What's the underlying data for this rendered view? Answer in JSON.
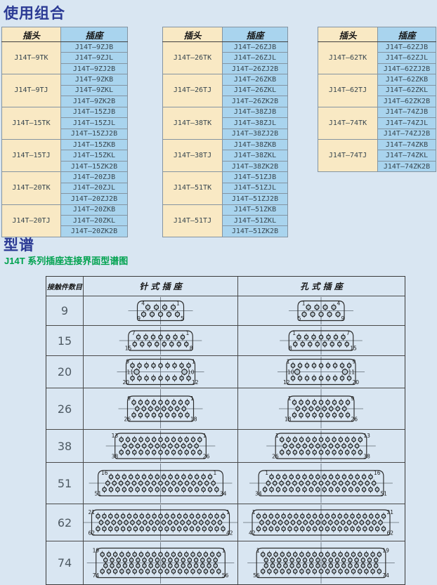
{
  "section_usage": {
    "title": "使用组合",
    "col_headers": {
      "plug": "插头",
      "socket": "插座"
    },
    "tables": [
      {
        "groups": [
          {
            "plug": "J14T—9TK",
            "sockets": [
              "J14T—9ZJB",
              "J14T—9ZJL",
              "J14T—9ZJ2B"
            ]
          },
          {
            "plug": "J14T—9TJ",
            "sockets": [
              "J14T—9ZKB",
              "J14T—9ZKL",
              "J14T—9ZK2B"
            ]
          },
          {
            "plug": "J14T—15TK",
            "sockets": [
              "J14T—15ZJB",
              "J14T—15ZJL",
              "J14T—15ZJ2B"
            ]
          },
          {
            "plug": "J14T—15TJ",
            "sockets": [
              "J14T—15ZKB",
              "J14T—15ZKL",
              "J14T—15ZK2B"
            ]
          },
          {
            "plug": "J14T—20TK",
            "sockets": [
              "J14T—20ZJB",
              "J14T—20ZJL",
              "J14T—20ZJ2B"
            ]
          },
          {
            "plug": "J14T—20TJ",
            "sockets": [
              "J14T—20ZKB",
              "J14T—20ZKL",
              "J14T—20ZK2B"
            ]
          }
        ]
      },
      {
        "groups": [
          {
            "plug": "J14T—26TK",
            "sockets": [
              "J14T—26ZJB",
              "J14T—26ZJL",
              "J14T—26ZJ2B"
            ]
          },
          {
            "plug": "J14T—26TJ",
            "sockets": [
              "J14T—26ZKB",
              "J14T—26ZKL",
              "J14T—26ZK2B"
            ]
          },
          {
            "plug": "J14T—38TK",
            "sockets": [
              "J14T—38ZJB",
              "J14T—38ZJL",
              "J14T—38ZJ2B"
            ]
          },
          {
            "plug": "J14T—38TJ",
            "sockets": [
              "J14T—38ZKB",
              "J14T—38ZKL",
              "J14T—38ZK2B"
            ]
          },
          {
            "plug": "J14T—51TK",
            "sockets": [
              "J14T—51ZJB",
              "J14T—51ZJL",
              "J14T—51ZJ2B"
            ]
          },
          {
            "plug": "J14T—51TJ",
            "sockets": [
              "J14T—51ZKB",
              "J14T—51ZKL",
              "J14T—51ZK2B"
            ]
          }
        ]
      },
      {
        "groups": [
          {
            "plug": "J14T—62TK",
            "sockets": [
              "J14T—62ZJB",
              "J14T—62ZJL",
              "J14T—62ZJ2B"
            ]
          },
          {
            "plug": "J14T—62TJ",
            "sockets": [
              "J14T—62ZKB",
              "J14T—62ZKL",
              "J14T—62ZK2B"
            ]
          },
          {
            "plug": "J14T—74TK",
            "sockets": [
              "J14T—74ZJB",
              "J14T—74ZJL",
              "J14T—74ZJ2B"
            ]
          },
          {
            "plug": "J14T—74TJ",
            "sockets": [
              "J14T—74ZKB",
              "J14T—74ZKL",
              "J14T—74ZK2B"
            ]
          }
        ]
      }
    ]
  },
  "section_spectrum": {
    "title": "型谱",
    "subtitle": "J14T 系列插座连接界面型谱图",
    "table_headers": {
      "contacts": "接触件数目",
      "pin_socket": "针 式 插 座",
      "hole_socket": "孔 式 插 座"
    },
    "rows": [
      {
        "count": "9",
        "pin": {
          "rows": [
            {
              "n": 4,
              "l": "4",
              "r": "1"
            },
            {
              "n": 5,
              "l": "9",
              "r": "5"
            }
          ]
        },
        "hole": {
          "rows": [
            {
              "n": 4,
              "l": "1",
              "r": "4"
            },
            {
              "n": 5,
              "l": "5",
              "r": "9"
            }
          ]
        }
      },
      {
        "count": "15",
        "pin": {
          "rows": [
            {
              "n": 7,
              "l": "7",
              "r": "1"
            },
            {
              "n": 8,
              "l": "15",
              "r": "8"
            }
          ]
        },
        "hole": {
          "rows": [
            {
              "n": 7,
              "l": "1",
              "r": "7"
            },
            {
              "n": 8,
              "l": "8",
              "r": "15"
            }
          ]
        }
      },
      {
        "count": "20",
        "pin": {
          "rows": [
            {
              "n": 9,
              "l": "9",
              "r": "1"
            },
            {
              "n": 2,
              "l": "11",
              "r": "10",
              "spread": true
            },
            {
              "n": 9,
              "l": "20",
              "r": "12"
            }
          ]
        },
        "hole": {
          "rows": [
            {
              "n": 9,
              "l": "1",
              "r": "9"
            },
            {
              "n": 2,
              "l": "10",
              "r": "11",
              "spread": true
            },
            {
              "n": 9,
              "l": "12",
              "r": "20"
            }
          ]
        }
      },
      {
        "count": "26",
        "pin": {
          "rows": [
            {
              "n": 9,
              "l": "9",
              "r": "1"
            },
            {
              "n": 8
            },
            {
              "n": 9,
              "l": "26",
              "r": "18"
            }
          ]
        },
        "hole": {
          "rows": [
            {
              "n": 9,
              "l": "1",
              "r": "9"
            },
            {
              "n": 8
            },
            {
              "n": 9,
              "l": "18",
              "r": "26"
            }
          ]
        }
      },
      {
        "count": "38",
        "pin": {
          "rows": [
            {
              "n": 13,
              "l": "13",
              "r": "1"
            },
            {
              "n": 12
            },
            {
              "n": 13,
              "l": "38",
              "r": "26"
            }
          ]
        },
        "hole": {
          "rows": [
            {
              "n": 13,
              "l": "1",
              "r": "13"
            },
            {
              "n": 12
            },
            {
              "n": 13,
              "l": "26",
              "r": "38"
            }
          ]
        }
      },
      {
        "count": "51",
        "pin": {
          "rows": [
            {
              "n": 16,
              "l": "16",
              "r": "1"
            },
            {
              "n": 17
            },
            {
              "n": 18,
              "l": "51",
              "r": "34"
            }
          ]
        },
        "hole": {
          "rows": [
            {
              "n": 16,
              "l": "1",
              "r": "16"
            },
            {
              "n": 17
            },
            {
              "n": 18,
              "l": "34",
              "r": "51"
            }
          ]
        }
      },
      {
        "count": "62",
        "pin": {
          "rows": [
            {
              "n": 21,
              "l": "21",
              "r": "1"
            },
            {
              "n": 20
            },
            {
              "n": 21,
              "l": "62",
              "r": "42"
            }
          ]
        },
        "hole": {
          "rows": [
            {
              "n": 21,
              "l": "1",
              "r": "21"
            },
            {
              "n": 20
            },
            {
              "n": 21,
              "l": "42",
              "r": "62"
            }
          ]
        }
      },
      {
        "count": "74",
        "pin": {
          "rows": [
            {
              "n": 19,
              "l": "19",
              "r": "1"
            },
            {
              "n": 18
            },
            {
              "n": 18
            },
            {
              "n": 19,
              "l": "74",
              "r": "56"
            }
          ]
        },
        "hole": {
          "rows": [
            {
              "n": 19,
              "l": "1",
              "r": "19"
            },
            {
              "n": 18
            },
            {
              "n": 18
            },
            {
              "n": 19,
              "l": "56",
              "r": "74"
            }
          ]
        }
      }
    ]
  },
  "colors": {
    "page_bg": "#d9e6f2",
    "plug_cell": "#f9e9c4",
    "socket_cell": "#a9d4ee",
    "heading_blue": "#2b3a94",
    "subtitle_green": "#00a24f"
  }
}
